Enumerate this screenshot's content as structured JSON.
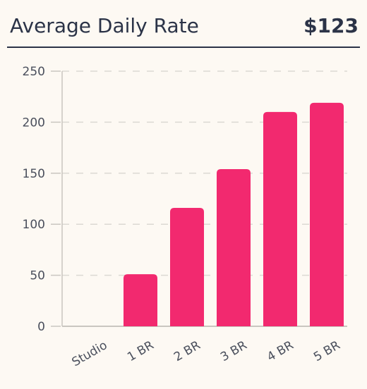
{
  "header": {
    "title": "Average Daily Rate",
    "value": "$123"
  },
  "colors": {
    "bar": "#f2296f",
    "grid": "#dcd9d3",
    "axis": "#c9c6c0",
    "text": "#2b3347"
  },
  "chart_data": {
    "type": "bar",
    "categories": [
      "Studio",
      "1 BR",
      "2 BR",
      "3 BR",
      "4 BR",
      "5 BR"
    ],
    "values": [
      0,
      51,
      116,
      154,
      210,
      219
    ],
    "ylim": [
      0,
      250
    ],
    "yticks": [
      0,
      50,
      100,
      150,
      200,
      250
    ],
    "grid": true
  }
}
